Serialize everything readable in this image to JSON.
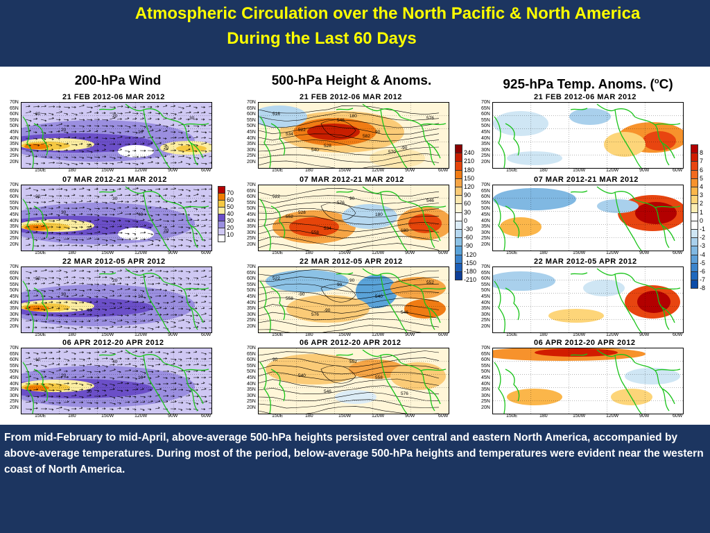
{
  "header": {
    "title_line1": "Atmospheric Circulation over the North Pacific & North America",
    "title_line2": "During the Last 60 Days"
  },
  "columns": [
    {
      "heading": "200-hPa Wind"
    },
    {
      "heading": "500-hPa Height & Anoms."
    },
    {
      "heading": "925-hPa Temp. Anoms. (",
      "heading_sup": "o",
      "heading_end": "C)"
    }
  ],
  "periods": [
    "21 FEB 2012-06 MAR 2012",
    "07 MAR 2012-21 MAR 2012",
    "22 MAR 2012-05 APR 2012",
    "06 APR 2012-20 APR 2012"
  ],
  "lat_labels": [
    "70N",
    "65N",
    "60N",
    "55N",
    "50N",
    "45N",
    "40N",
    "35N",
    "30N",
    "25N",
    "20N"
  ],
  "lon_labels": [
    "150E",
    "180",
    "150W",
    "120W",
    "90W",
    "60W"
  ],
  "colorbars": {
    "wind": {
      "labels": [
        "70",
        "60",
        "50",
        "40",
        "30",
        "20",
        "10"
      ],
      "colors": [
        "#b50000",
        "#f07d00",
        "#f5c842",
        "#fbeda1",
        "#6b4fc8",
        "#9b8fe0",
        "#cfc8f3",
        "#ffffff"
      ]
    },
    "height": {
      "labels": [
        "240",
        "210",
        "180",
        "150",
        "120",
        "90",
        "60",
        "30",
        "0",
        "-30",
        "-60",
        "-90",
        "-120",
        "-150",
        "-180",
        "-210"
      ],
      "colors": [
        "#8b0000",
        "#c81e00",
        "#e6450a",
        "#f07c14",
        "#f6a545",
        "#fbcb77",
        "#fde8b0",
        "#fff6d8",
        "#ffffff",
        "#dcecf6",
        "#b5d7ef",
        "#8cc2e6",
        "#5aa3d9",
        "#3a83cc",
        "#1d5fb8",
        "#0e3f98"
      ]
    },
    "temp": {
      "labels": [
        "8",
        "7",
        "6",
        "5",
        "4",
        "3",
        "2",
        "1",
        "0",
        "-1",
        "-2",
        "-3",
        "-4",
        "-5",
        "-6",
        "-7",
        "-8"
      ],
      "colors": [
        "#b30000",
        "#d11c00",
        "#e84510",
        "#f26a1e",
        "#f7922c",
        "#fbb64a",
        "#fdd579",
        "#feeeb4",
        "#ffffff",
        "#ffffff",
        "#cfe6f4",
        "#a9d0ec",
        "#80b8e2",
        "#5c9fd8",
        "#3b84cc",
        "#1f68bd",
        "#0c4ca8"
      ]
    }
  },
  "wind_annotations": [
    [
      "30",
      "20",
      "30",
      "20",
      "10",
      "20",
      "30"
    ],
    [
      "20",
      "30",
      "20",
      "30",
      "40",
      "20"
    ],
    [
      "20",
      "30",
      "40",
      "20",
      "10"
    ],
    [
      "10",
      "20",
      "30",
      "40",
      "10"
    ]
  ],
  "height_annotations": [
    [
      "516",
      "522",
      "528",
      "180",
      "90",
      "-90",
      "576",
      "534",
      "540",
      "546",
      "582",
      "570"
    ],
    [
      "522",
      "528",
      "534",
      "90",
      "180",
      "180",
      "546",
      "552",
      "558",
      "576"
    ],
    [
      "522",
      "-90",
      "-90",
      "90",
      "540",
      "546",
      "552",
      "558",
      "576",
      "90"
    ],
    [
      "90",
      "540",
      "546",
      "552",
      "558",
      "576"
    ]
  ],
  "footer": {
    "text": "From mid-February to mid-April, above-average 500-hPa heights persisted over central and eastern  North America, accompanied by above-average temperatures.  During most of the period, below-average 500-hPa heights and temperatures were evident near the western coast of North America."
  }
}
